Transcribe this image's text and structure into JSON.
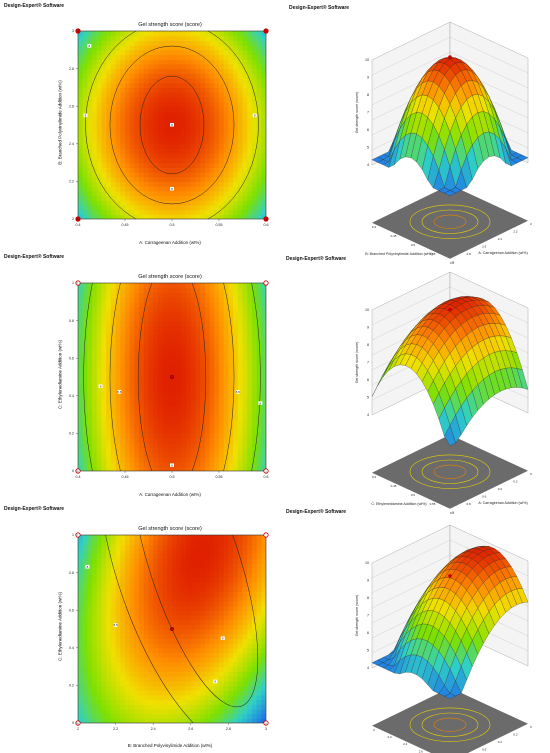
{
  "brand": "Design-Expert® Software",
  "colors": {
    "low": "#1e6ee8",
    "mid": "#7ee000",
    "high": "#e02000",
    "point": "#c80000",
    "floor": "#6b6b6b"
  },
  "chart_data": [
    {
      "type": "contour",
      "title": "Gel strength score (score)",
      "xlabel": "A: Carrageenan Addition (wt%)",
      "ylabel": "B: Branched Polyvinylimide Addition (wt%)",
      "xlim": [
        0.4,
        0.6
      ],
      "ylim": [
        2,
        3
      ],
      "xticks": [
        "0.4",
        "0.45",
        "0.5",
        "0.55",
        "0.6"
      ],
      "yticks": [
        "2",
        "2.2",
        "2.4",
        "2.6",
        "2.8",
        "3"
      ],
      "contour_labels": [
        "8",
        "8",
        "8",
        "8",
        "9"
      ],
      "center_point": {
        "x": 0.5,
        "y": 2.5
      }
    },
    {
      "type": "surface3d",
      "zlabel": "Gel strength score (score)",
      "xlabel": "A: Carrageenan Addition (wt%)",
      "ylabel": "B: Branched Polyvinylimide Addition (wt%)",
      "zticks": [
        "4",
        "5",
        "6",
        "7",
        "8",
        "9",
        "10"
      ],
      "xticks": [
        "0.4",
        "0.45",
        "0.5",
        "0.55",
        "0.6"
      ],
      "yticks": [
        "2",
        "2.2",
        "2.4",
        "2.6",
        "2.8",
        "3"
      ]
    },
    {
      "type": "contour",
      "title": "Gel strength score (score)",
      "xlabel": "A: Carrageenan Addition (wt%)",
      "ylabel": "C: Ethylenediamine Addition (wt%)",
      "xlim": [
        0.4,
        0.6
      ],
      "ylim": [
        0,
        1
      ],
      "xticks": [
        "0.4",
        "0.45",
        "0.5",
        "0.55",
        "0.6"
      ],
      "yticks": [
        "0",
        "0.2",
        "0.4",
        "0.6",
        "0.8",
        "1"
      ],
      "contour_labels": [
        "8",
        "8.5",
        "8.5",
        "8",
        "9"
      ],
      "center_point": {
        "x": 0.5,
        "y": 0.5
      }
    },
    {
      "type": "surface3d",
      "zlabel": "Gel strength score (score)",
      "xlabel": "A: Carrageenan Addition (wt%)",
      "ylabel": "C: Ethylenediamine Addition (wt%)",
      "zticks": [
        "4",
        "5",
        "6",
        "7",
        "8",
        "9",
        "10"
      ],
      "xticks": [
        "0.4",
        "0.45",
        "0.5",
        "0.55",
        "0.6"
      ],
      "yticks": [
        "0",
        "0.2",
        "0.4",
        "0.6",
        "0.8",
        "1"
      ]
    },
    {
      "type": "contour",
      "title": "Gel strength score (score)",
      "xlabel": "B: Branched Polyvinylimide Addition (wt%)",
      "ylabel": "C: Ethylenediamine Addition (wt%)",
      "xlim": [
        2,
        3
      ],
      "ylim": [
        0,
        1
      ],
      "xticks": [
        "2",
        "2.2",
        "2.4",
        "2.6",
        "2.8",
        "3"
      ],
      "yticks": [
        "0",
        "0.2",
        "0.4",
        "0.6",
        "0.8",
        "1"
      ],
      "contour_labels": [
        "8",
        "8.5",
        "9",
        "9"
      ],
      "center_point": {
        "x": 2.5,
        "y": 0.5
      }
    },
    {
      "type": "surface3d",
      "zlabel": "Gel strength score (score)",
      "xlabel": "B: Branched Polyvinylimide Addition (wt%)",
      "ylabel": "C: Ethylenediamine Addition (wt%)",
      "zticks": [
        "4",
        "5",
        "6",
        "7",
        "8",
        "9",
        "10"
      ],
      "xticks": [
        "2",
        "2.2",
        "2.4",
        "2.6",
        "2.8",
        "3"
      ],
      "yticks": [
        "0",
        "0.2",
        "0.4",
        "0.6",
        "0.8",
        "1"
      ]
    }
  ]
}
